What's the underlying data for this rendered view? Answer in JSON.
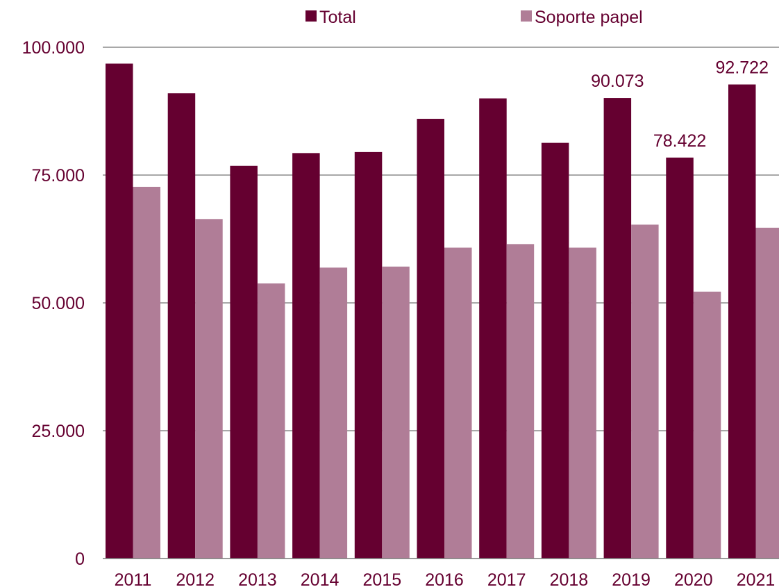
{
  "chart_data": {
    "type": "bar",
    "categories": [
      "2011",
      "2012",
      "2013",
      "2014",
      "2015",
      "2016",
      "2017",
      "2018",
      "2019",
      "2020",
      "2021"
    ],
    "series": [
      {
        "name": "Total",
        "values": [
          96800,
          91000,
          76800,
          79300,
          79500,
          86000,
          90000,
          81300,
          90073,
          78422,
          92722
        ],
        "color": "#650030"
      },
      {
        "name": "Soporte papel",
        "values": [
          72700,
          66400,
          53800,
          56900,
          57100,
          60800,
          61500,
          60800,
          65300,
          52200,
          64700
        ],
        "color": "#b07d97"
      }
    ],
    "y_ticks": [
      {
        "value": 0,
        "label": "0"
      },
      {
        "value": 25000,
        "label": "25.000"
      },
      {
        "value": 50000,
        "label": "50.000"
      },
      {
        "value": 75000,
        "label": "75.000"
      },
      {
        "value": 100000,
        "label": "100.000"
      }
    ],
    "data_labels": [
      {
        "category_index": 8,
        "series_index": 0,
        "text": "90.073"
      },
      {
        "category_index": 9,
        "series_index": 0,
        "text": "78.422"
      },
      {
        "category_index": 10,
        "series_index": 0,
        "text": "92.722"
      }
    ],
    "ylim": [
      0,
      100000
    ],
    "grid": true,
    "legend_position": "top",
    "title": "",
    "xlabel": "",
    "ylabel": "",
    "colors": {
      "grid": "#8c8c8c",
      "axis": "#7a7a7a",
      "text": "#650030"
    }
  }
}
